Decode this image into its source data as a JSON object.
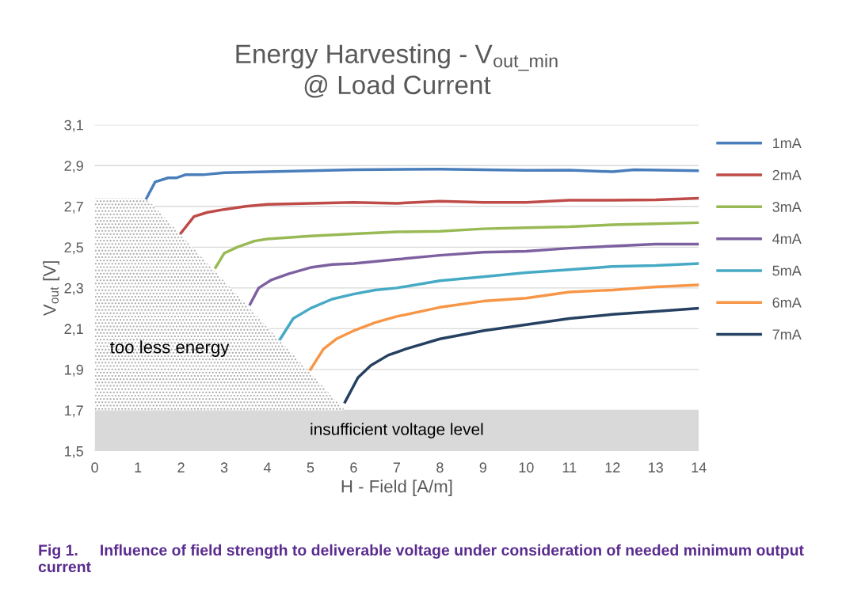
{
  "chart_data": {
    "type": "line",
    "title": "Energy Harvesting - V$_{out_min}$\n@ Load Current",
    "xlabel": "H - Field [A/m]",
    "ylabel": "V$_{out}$ [V]",
    "xlim": [
      0,
      14
    ],
    "xticks": [
      0,
      1,
      2,
      3,
      4,
      5,
      6,
      7,
      8,
      9,
      10,
      11,
      12,
      13,
      14
    ],
    "ylim": [
      1.5,
      3.1
    ],
    "yticks": [
      {
        "value": 1.5,
        "label": "1,5"
      },
      {
        "value": 1.7,
        "label": "1,7"
      },
      {
        "value": 1.9,
        "label": "1,9"
      },
      {
        "value": 2.1,
        "label": "2,1"
      },
      {
        "value": 2.3,
        "label": "2,3"
      },
      {
        "value": 2.5,
        "label": "2,5"
      },
      {
        "value": 2.7,
        "label": "2,7"
      },
      {
        "value": 2.9,
        "label": "2,9"
      },
      {
        "value": 3.1,
        "label": "3,1"
      }
    ],
    "grid": "y",
    "legend": "right",
    "bands": [
      {
        "axis": "y",
        "from": 1.5,
        "to": 1.7,
        "label": "insufficient voltage level",
        "color": "#d9d9d9"
      }
    ],
    "series": [
      {
        "type": "area",
        "color": "#a6a6a6",
        "x": [
          0,
          1.2,
          5.8
        ],
        "values": [
          2.74,
          2.74,
          1.7
        ]
      },
      {
        "name": "1mA",
        "color": "#4a7ebb",
        "x": [
          1.2,
          1.4,
          1.7,
          1.9,
          2.1,
          2.5,
          3,
          4,
          5,
          6,
          8,
          10,
          11,
          12,
          12.5,
          14
        ],
        "values": [
          2.74,
          2.82,
          2.84,
          2.84,
          2.855,
          2.855,
          2.865,
          2.87,
          2.875,
          2.88,
          2.883,
          2.877,
          2.878,
          2.87,
          2.88,
          2.875
        ]
      },
      {
        "name": "2mA",
        "color": "#be4b48",
        "x": [
          2.0,
          2.3,
          2.6,
          3,
          3.5,
          4,
          5,
          6,
          7,
          8,
          9,
          10,
          11,
          12,
          13,
          14
        ],
        "values": [
          2.57,
          2.65,
          2.67,
          2.685,
          2.7,
          2.71,
          2.715,
          2.72,
          2.715,
          2.725,
          2.72,
          2.72,
          2.73,
          2.73,
          2.732,
          2.74
        ]
      },
      {
        "name": "3mA",
        "color": "#98b954",
        "x": [
          2.8,
          3.0,
          3.3,
          3.7,
          4,
          5,
          6,
          7,
          8,
          9,
          10,
          11,
          12,
          13,
          14
        ],
        "values": [
          2.4,
          2.47,
          2.5,
          2.53,
          2.54,
          2.555,
          2.565,
          2.575,
          2.578,
          2.59,
          2.595,
          2.6,
          2.61,
          2.615,
          2.62
        ]
      },
      {
        "name": "4mA",
        "color": "#7d60a0",
        "x": [
          3.6,
          3.8,
          4.1,
          4.5,
          5,
          5.5,
          6,
          7,
          8,
          9,
          10,
          11,
          12,
          13,
          14
        ],
        "values": [
          2.22,
          2.3,
          2.34,
          2.37,
          2.4,
          2.415,
          2.42,
          2.44,
          2.46,
          2.475,
          2.48,
          2.495,
          2.505,
          2.515,
          2.515
        ]
      },
      {
        "name": "5mA",
        "color": "#46aac5",
        "x": [
          4.3,
          4.6,
          5,
          5.5,
          6,
          6.5,
          7,
          8,
          9,
          10,
          11,
          12,
          13,
          14
        ],
        "values": [
          2.05,
          2.15,
          2.2,
          2.245,
          2.27,
          2.29,
          2.3,
          2.335,
          2.355,
          2.375,
          2.39,
          2.405,
          2.41,
          2.42
        ]
      },
      {
        "name": "6mA",
        "color": "#f79646",
        "x": [
          5.0,
          5.3,
          5.6,
          6,
          6.5,
          7,
          8,
          9,
          10,
          11,
          12,
          13,
          14
        ],
        "values": [
          1.9,
          2.0,
          2.05,
          2.09,
          2.13,
          2.16,
          2.205,
          2.235,
          2.25,
          2.28,
          2.29,
          2.305,
          2.315
        ]
      },
      {
        "name": "7mA",
        "color": "#254061",
        "x": [
          5.8,
          6.1,
          6.4,
          6.8,
          7.2,
          8,
          9,
          10,
          11,
          12,
          13,
          14
        ],
        "values": [
          1.74,
          1.86,
          1.92,
          1.97,
          2.0,
          2.05,
          2.09,
          2.12,
          2.15,
          2.17,
          2.185,
          2.2
        ]
      }
    ],
    "annotations": [
      "too less energy",
      "Fig 1.     Influence of field strength to deliverable voltage under consideration of needed minimum output current"
    ]
  }
}
